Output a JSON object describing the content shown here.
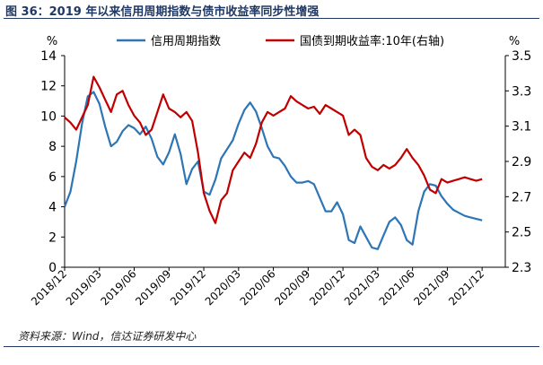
{
  "figure": {
    "title": "图 36：2019 年以来信用周期指数与债市收益率同步性增强",
    "source": "资料来源：Wind，信达证券研发中心"
  },
  "chart_data": {
    "type": "line",
    "left_unit": "%",
    "right_unit": "%",
    "y_left_ticks": [
      "0",
      "2",
      "4",
      "6",
      "8",
      "10",
      "12",
      "14"
    ],
    "y_right_ticks": [
      "2.3",
      "2.5",
      "2.7",
      "2.9",
      "3.1",
      "3.3",
      "3.5"
    ],
    "ylim_left": [
      0,
      14
    ],
    "ylim_right": [
      2.3,
      3.5
    ],
    "xlim": [
      0,
      38
    ],
    "x_tick_labels": [
      "2018/12",
      "2019/03",
      "2019/06",
      "2019/09",
      "2019/12",
      "2020/03",
      "2020/06",
      "2020/09",
      "2020/12",
      "2021/03",
      "2021/06",
      "2021/09",
      "2021/12"
    ],
    "legend_position": "top",
    "grid": false,
    "series": [
      {
        "name": "信用周期指数",
        "axis": "left",
        "color": "#2e75b6",
        "x": [
          0,
          0.5,
          1,
          1.5,
          2,
          2.5,
          3,
          3.5,
          4,
          4.5,
          5,
          5.5,
          6,
          6.5,
          7,
          7.5,
          8,
          8.5,
          9,
          9.5,
          10,
          10.5,
          11,
          11.5,
          12,
          12.5,
          13,
          13.5,
          14,
          14.5,
          15,
          15.5,
          16,
          16.5,
          17,
          17.5,
          18,
          18.5,
          19,
          19.5,
          20,
          20.5,
          21,
          21.5,
          22,
          22.5,
          23,
          23.5,
          24,
          24.5,
          25,
          25.5,
          26,
          26.5,
          27,
          27.5,
          28,
          28.5,
          29,
          29.5,
          30,
          30.5,
          31,
          31.5,
          32,
          32.5,
          33,
          33.5,
          34,
          34.5,
          35,
          35.5,
          36
        ],
        "y": [
          4.0,
          5.0,
          7.0,
          9.5,
          11.3,
          11.6,
          10.8,
          9.3,
          8.0,
          8.3,
          9.0,
          9.4,
          9.2,
          8.8,
          9.3,
          8.5,
          7.3,
          6.8,
          7.6,
          8.8,
          7.5,
          5.5,
          6.5,
          7.0,
          5.0,
          4.8,
          5.8,
          7.2,
          7.8,
          8.4,
          9.5,
          10.4,
          10.9,
          10.3,
          9.2,
          8.0,
          7.3,
          7.2,
          6.7,
          6.0,
          5.6,
          5.6,
          5.7,
          5.5,
          4.6,
          3.7,
          3.7,
          4.3,
          3.5,
          1.8,
          1.6,
          2.7,
          2.0,
          1.3,
          1.2,
          2.1,
          3.0,
          3.3,
          2.8,
          1.8,
          1.5,
          3.7,
          5.0,
          5.5,
          5.4,
          4.7,
          4.2,
          3.8,
          3.6,
          3.4,
          3.3,
          3.2,
          3.1
        ]
      },
      {
        "name": "国债到期收益率:10年(右轴)",
        "axis": "right",
        "color": "#c00000",
        "x": [
          0,
          0.5,
          1,
          1.5,
          2,
          2.5,
          3,
          3.5,
          4,
          4.5,
          5,
          5.5,
          6,
          6.5,
          7,
          7.5,
          8,
          8.5,
          9,
          9.5,
          10,
          10.5,
          11,
          11.5,
          12,
          12.5,
          13,
          13.5,
          14,
          14.5,
          15,
          15.5,
          16,
          16.5,
          17,
          17.5,
          18,
          18.5,
          19,
          19.5,
          20,
          20.5,
          21,
          21.5,
          22,
          22.5,
          23,
          23.5,
          24,
          24.5,
          25,
          25.5,
          26,
          26.5,
          27,
          27.5,
          28,
          28.5,
          29,
          29.5,
          30,
          30.5,
          31,
          31.5,
          32,
          32.5,
          33,
          33.5,
          34,
          34.5,
          35,
          35.5,
          36
        ],
        "y": [
          3.15,
          3.12,
          3.08,
          3.15,
          3.22,
          3.38,
          3.32,
          3.25,
          3.18,
          3.28,
          3.3,
          3.22,
          3.16,
          3.12,
          3.05,
          3.08,
          3.18,
          3.28,
          3.2,
          3.18,
          3.15,
          3.18,
          3.13,
          2.95,
          2.72,
          2.62,
          2.55,
          2.68,
          2.72,
          2.85,
          2.9,
          2.95,
          2.92,
          3.0,
          3.12,
          3.18,
          3.16,
          3.18,
          3.2,
          3.27,
          3.24,
          3.22,
          3.2,
          3.21,
          3.17,
          3.22,
          3.2,
          3.18,
          3.16,
          3.05,
          3.08,
          3.05,
          2.92,
          2.87,
          2.85,
          2.88,
          2.86,
          2.88,
          2.92,
          2.97,
          2.92,
          2.88,
          2.82,
          2.74,
          2.72,
          2.8,
          2.78,
          2.79,
          2.8,
          2.81,
          2.8,
          2.79,
          2.8
        ]
      }
    ]
  }
}
